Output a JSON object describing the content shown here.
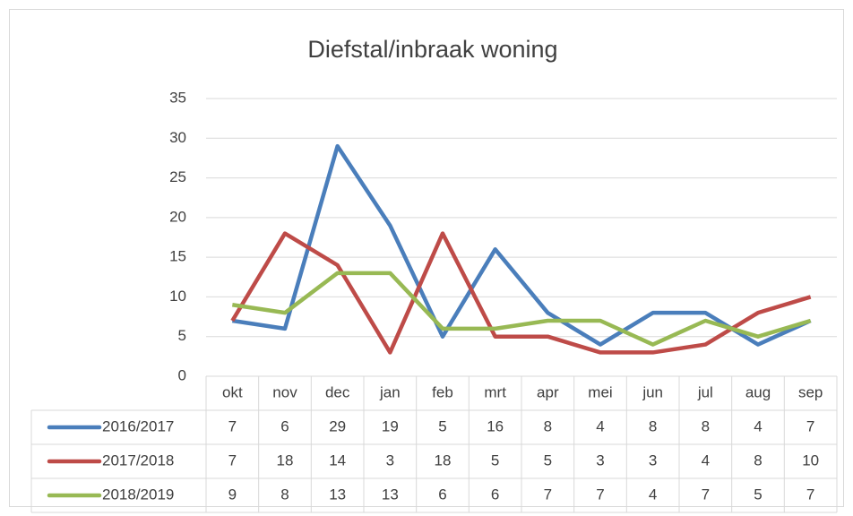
{
  "chart_data": {
    "type": "line",
    "title": "Diefstal/inbraak woning",
    "categories": [
      "okt",
      "nov",
      "dec",
      "jan",
      "feb",
      "mrt",
      "apr",
      "mei",
      "jun",
      "jul",
      "aug",
      "sep"
    ],
    "series": [
      {
        "name": "2016/2017",
        "color": "#4a7ebb",
        "values": [
          7,
          6,
          29,
          19,
          5,
          16,
          8,
          4,
          8,
          8,
          4,
          7
        ]
      },
      {
        "name": "2017/2018",
        "color": "#be4b48",
        "values": [
          7,
          18,
          14,
          3,
          18,
          5,
          5,
          3,
          3,
          4,
          8,
          10
        ]
      },
      {
        "name": "2018/2019",
        "color": "#98b954",
        "values": [
          9,
          8,
          13,
          13,
          6,
          6,
          7,
          7,
          4,
          7,
          5,
          7
        ]
      }
    ],
    "ylim": [
      0,
      35
    ],
    "yticks": [
      0,
      5,
      10,
      15,
      20,
      25,
      30,
      35
    ],
    "grid": true,
    "data_table": true
  }
}
